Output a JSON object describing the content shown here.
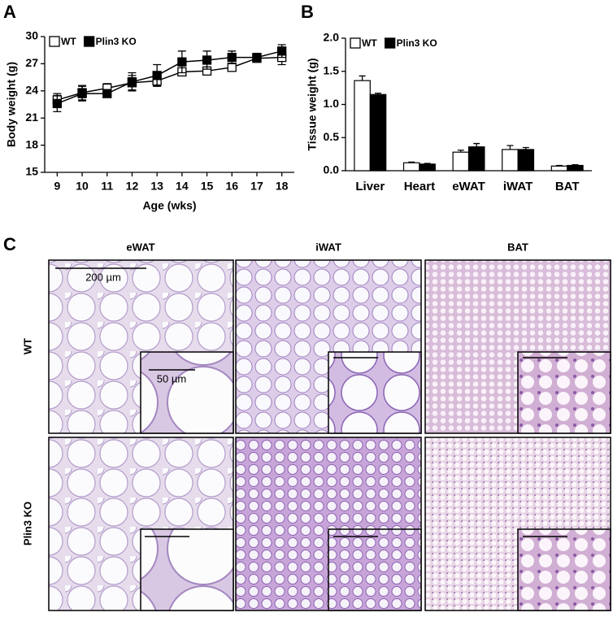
{
  "panel_labels": [
    "A",
    "B",
    "C"
  ],
  "chart_data": [
    {
      "type": "line",
      "x": [
        9,
        10,
        11,
        12,
        13,
        14,
        15,
        16,
        17,
        18
      ],
      "xlim": [
        8.5,
        18.5
      ],
      "xticks": [
        9,
        10,
        11,
        12,
        13,
        14,
        15,
        16,
        17,
        18
      ],
      "ylim": [
        15,
        30
      ],
      "yticks": [
        15,
        18,
        21,
        24,
        27,
        30
      ],
      "xlabel": "Age (wks)",
      "ylabel": "Body weight (g)",
      "legend": "upper left",
      "series": [
        {
          "name": "WT",
          "color": "#ffffff",
          "values": [
            23.0,
            23.8,
            24.3,
            24.9,
            25.1,
            26.1,
            26.2,
            26.6,
            27.6,
            27.7
          ],
          "errors": [
            0.7,
            0.8,
            0.5,
            0.8,
            0.5,
            0.4,
            0.3,
            0.3,
            0.3,
            0.8
          ]
        },
        {
          "name": "Plin3 KO",
          "color": "#000000",
          "values": [
            22.6,
            23.7,
            23.7,
            25.0,
            25.7,
            27.2,
            27.4,
            27.7,
            27.7,
            28.4
          ],
          "errors": [
            0.9,
            0.8,
            0.4,
            1.0,
            1.2,
            1.2,
            1.0,
            0.7,
            0.3,
            0.7
          ]
        }
      ]
    },
    {
      "type": "bar",
      "categories": [
        "Liver",
        "Heart",
        "eWAT",
        "iWAT",
        "BAT"
      ],
      "ylim": [
        0,
        2
      ],
      "yticks": [
        {
          "value": 0,
          "label": "0.0"
        },
        0.5,
        {
          "value": 1,
          "label": "1.0"
        },
        1.5,
        {
          "value": 2,
          "label": "2.0"
        }
      ],
      "ylabel": "Tissue weight (g)",
      "legend": "upper left",
      "series": [
        {
          "name": "WT",
          "color": "#ffffff",
          "values": [
            1.36,
            0.12,
            0.28,
            0.32,
            0.07
          ],
          "errors": [
            0.07,
            0.01,
            0.03,
            0.06,
            0.01
          ]
        },
        {
          "name": "Plin3 KO",
          "color": "#000000",
          "values": [
            1.15,
            0.1,
            0.36,
            0.32,
            0.08
          ],
          "errors": [
            0.02,
            0.01,
            0.05,
            0.03,
            0.01
          ]
        }
      ]
    }
  ],
  "histology": {
    "columns": [
      "eWAT",
      "iWAT",
      "BAT"
    ],
    "rows": [
      "WT",
      "Plin3 KO"
    ],
    "scale_bars": [
      "200 µm",
      "50 µm"
    ]
  }
}
